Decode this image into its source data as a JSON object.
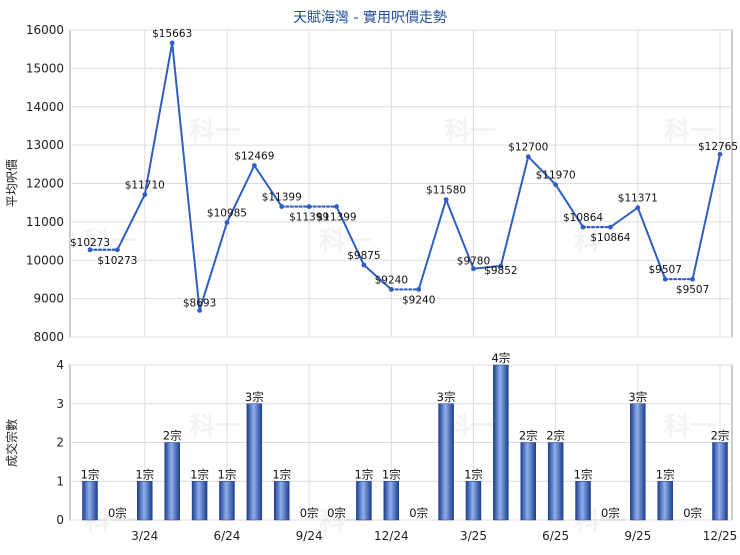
{
  "chart_data": [
    {
      "type": "line",
      "title": "天賦海灣 - 實用呎價走勢",
      "ylabel": "平均呎價",
      "ylim": [
        8000,
        16000
      ],
      "yticks": [
        8000,
        9000,
        10000,
        11000,
        12000,
        13000,
        14000,
        15000,
        16000
      ],
      "grid": true,
      "x_tick_labels": [
        "3/24",
        "6/24",
        "9/24",
        "12/24",
        "3/25",
        "6/25",
        "9/25",
        "12/25"
      ],
      "x_tick_months": [
        3,
        6,
        9,
        12,
        15,
        18,
        21,
        24
      ],
      "x_start_month": 1,
      "x_end_month": 24,
      "points": [
        {
          "m": 1,
          "v": 10273,
          "label": "$10273",
          "actual": true
        },
        {
          "m": 2,
          "v": 10273,
          "label": "$10273",
          "actual": false
        },
        {
          "m": 3,
          "v": 11710,
          "label": "$11710",
          "actual": true
        },
        {
          "m": 4,
          "v": 15663,
          "label": "$15663",
          "actual": true
        },
        {
          "m": 5,
          "v": 8693,
          "label": "$8693",
          "actual": true
        },
        {
          "m": 6,
          "v": 10985,
          "label": "$10985",
          "actual": true
        },
        {
          "m": 7,
          "v": 12469,
          "label": "$12469",
          "actual": true
        },
        {
          "m": 8,
          "v": 11399,
          "label": "$11399",
          "actual": true
        },
        {
          "m": 9,
          "v": 11399,
          "label": "$11399",
          "actual": false
        },
        {
          "m": 10,
          "v": 11399,
          "label": "$11399",
          "actual": false
        },
        {
          "m": 11,
          "v": 9875,
          "label": "$9875",
          "actual": true
        },
        {
          "m": 12,
          "v": 9240,
          "label": "$9240",
          "actual": true
        },
        {
          "m": 13,
          "v": 9240,
          "label": "$9240",
          "actual": false
        },
        {
          "m": 14,
          "v": 11580,
          "label": "$11580",
          "actual": true
        },
        {
          "m": 15,
          "v": 9780,
          "label": "$9780",
          "actual": true
        },
        {
          "m": 16,
          "v": 9852,
          "label": "$9852",
          "actual": true
        },
        {
          "m": 17,
          "v": 12700,
          "label": "$12700",
          "actual": true
        },
        {
          "m": 18,
          "v": 11970,
          "label": "$11970",
          "actual": true
        },
        {
          "m": 19,
          "v": 10864,
          "label": "$10864",
          "actual": true
        },
        {
          "m": 20,
          "v": 10864,
          "label": "$10864",
          "actual": false
        },
        {
          "m": 21,
          "v": 11371,
          "label": "$11371",
          "actual": true
        },
        {
          "m": 22,
          "v": 9507,
          "label": "$9507",
          "actual": true
        },
        {
          "m": 23,
          "v": 9507,
          "label": "$9507",
          "actual": false
        },
        {
          "m": 24,
          "v": 12765,
          "label": "$12765",
          "actual": true
        }
      ]
    },
    {
      "type": "bar",
      "ylabel": "成交宗數",
      "ylim": [
        0,
        4
      ],
      "yticks": [
        0,
        1,
        2,
        3,
        4
      ],
      "grid": true,
      "x_tick_labels": [
        "3/24",
        "6/24",
        "9/24",
        "12/24",
        "3/25",
        "6/25",
        "9/25",
        "12/25"
      ],
      "x_tick_months": [
        3,
        6,
        9,
        12,
        15,
        18,
        21,
        24
      ],
      "label_suffix": "宗",
      "months": [
        1,
        2,
        3,
        4,
        5,
        6,
        7,
        8,
        9,
        10,
        11,
        12,
        13,
        14,
        15,
        16,
        17,
        18,
        19,
        20,
        21,
        22,
        23,
        24
      ],
      "values": [
        1,
        0,
        1,
        2,
        1,
        1,
        3,
        1,
        0,
        0,
        1,
        1,
        0,
        3,
        1,
        4,
        2,
        2,
        1,
        0,
        3,
        1,
        0,
        2
      ],
      "bar_color": "#2f5fc4"
    }
  ],
  "watermark": "科一"
}
